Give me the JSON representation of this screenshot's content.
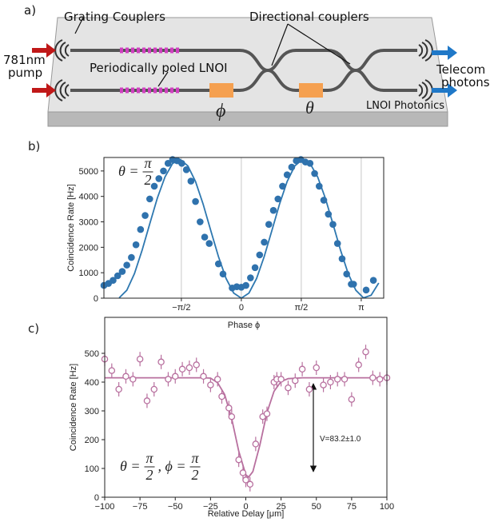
{
  "diagram": {
    "panel_label": "a)",
    "grating": "Grating Couplers",
    "directional": "Directional couplers",
    "pump": [
      "781nm",
      "pump"
    ],
    "ppln": "Periodically poled LNOI",
    "phi": "ϕ",
    "theta": "θ",
    "platform": "LNOI Photonics",
    "output": [
      "Telecom",
      "photons"
    ]
  },
  "chart_data": [
    {
      "type": "scatter",
      "panel_label": "b)",
      "xlabel": "Phase ϕ",
      "ylabel": "Coincidence Rate [Hz]",
      "annotation": [
        {
          "text": "θ ="
        },
        {
          "num": "π",
          "den": "2"
        }
      ],
      "xlim": [
        -3.6,
        3.73
      ],
      "ylim": [
        0,
        5530
      ],
      "xticks": [
        {
          "value": -1.5708,
          "label": "−π/2"
        },
        0,
        {
          "value": 1.5708,
          "label": "π/2"
        },
        {
          "value": 3.1416,
          "label": "π"
        }
      ],
      "yticks": [
        0,
        1000,
        2000,
        3000,
        4000,
        5000
      ],
      "grid": "x",
      "fit": {
        "color": "#2e78b0",
        "x": [
          -3.2,
          -3.0,
          -2.8,
          -2.6,
          -2.4,
          -2.2,
          -2.0,
          -1.8,
          -1.6,
          -1.4,
          -1.2,
          -1.0,
          -0.8,
          -0.6,
          -0.4,
          -0.2,
          0,
          0.2,
          0.4,
          0.6,
          0.8,
          1.0,
          1.2,
          1.4,
          1.6,
          1.8,
          2.0,
          2.2,
          2.4,
          2.6,
          2.8,
          3.0,
          3.2,
          3.4,
          3.6
        ],
        "values": [
          13,
          312,
          966,
          1883,
          2920,
          3936,
          4765,
          5295,
          5450,
          5197,
          4583,
          3693,
          2655,
          1637,
          775,
          201,
          0,
          201,
          775,
          1637,
          2655,
          3693,
          4583,
          5197,
          5450,
          5295,
          4765,
          3936,
          2920,
          1883,
          966,
          312,
          13,
          114,
          598
        ]
      },
      "points": {
        "color": "#2f72ad",
        "x": [
          -3.6,
          -3.48,
          -3.36,
          -3.24,
          -3.12,
          -3.0,
          -2.88,
          -2.76,
          -2.64,
          -2.52,
          -2.4,
          -2.28,
          -2.16,
          -2.04,
          -1.92,
          -1.8,
          -1.68,
          -1.56,
          -1.44,
          -1.32,
          -1.2,
          -1.08,
          -0.96,
          -0.84,
          -0.6,
          -0.48,
          -0.24,
          -0.12,
          0.0,
          0.12,
          0.24,
          0.36,
          0.48,
          0.6,
          0.72,
          0.84,
          0.96,
          1.08,
          1.2,
          1.32,
          1.44,
          1.56,
          1.68,
          1.8,
          1.92,
          2.04,
          2.16,
          2.28,
          2.4,
          2.52,
          2.64,
          2.76,
          2.88,
          2.94,
          3.27,
          3.46
        ],
        "values": [
          500,
          580,
          700,
          880,
          1050,
          1300,
          1600,
          2100,
          2700,
          3250,
          3900,
          4400,
          4700,
          5000,
          5300,
          5450,
          5400,
          5300,
          5050,
          4600,
          3800,
          3000,
          2400,
          2150,
          1350,
          950,
          400,
          450,
          430,
          500,
          800,
          1200,
          1700,
          2200,
          2900,
          3450,
          3900,
          4400,
          4850,
          5150,
          5400,
          5450,
          5350,
          5300,
          4900,
          4400,
          3850,
          3300,
          2900,
          2150,
          1550,
          950,
          550,
          550,
          320,
          700
        ]
      }
    },
    {
      "type": "scatter",
      "panel_label": "c)",
      "xlabel": "Relative Delay [μm]",
      "ylabel": "Coincidence Rate [Hz]",
      "annotation": [
        {
          "text": "θ ="
        },
        {
          "num": "π",
          "den": "2"
        },
        {
          "text": ", ϕ ="
        },
        {
          "num": "π",
          "den": "2"
        }
      ],
      "visibility": "V=83.2±1.0",
      "xlim": [
        -100,
        100
      ],
      "ylim": [
        0,
        625
      ],
      "xticks": [
        {
          "value": -100,
          "label": "−100"
        },
        {
          "value": -75,
          "label": "−75"
        },
        {
          "value": -50,
          "label": "−50"
        },
        {
          "value": -25,
          "label": "−25"
        },
        0,
        25,
        50,
        75,
        100
      ],
      "yticks": [
        0,
        100,
        200,
        300,
        400,
        500
      ],
      "grid": false,
      "fit": {
        "color": "#b8709f",
        "x": [
          -100,
          -50,
          -30,
          -25,
          -20,
          -15,
          -10,
          -5,
          0,
          2,
          5,
          10,
          15,
          20,
          25,
          30,
          40,
          50,
          100
        ],
        "values": [
          415,
          415,
          415,
          414,
          398,
          357,
          273,
          160,
          78,
          70,
          89,
          182,
          294,
          368,
          402,
          412,
          415,
          415,
          415
        ]
      },
      "points": {
        "color": "#b8709f",
        "x": [
          -100,
          -95,
          -90,
          -85,
          -80,
          -75,
          -70,
          -65,
          -60,
          -55,
          -50,
          -45,
          -40,
          -35,
          -30,
          -25,
          -20,
          -17,
          -12,
          -10,
          -5,
          -2,
          0,
          3,
          7,
          12,
          15,
          20,
          22,
          25,
          30,
          35,
          40,
          45,
          50,
          55,
          60,
          65,
          70,
          75,
          80,
          85,
          90,
          95,
          100
        ],
        "values": [
          480,
          440,
          375,
          420,
          410,
          480,
          335,
          375,
          470,
          410,
          420,
          445,
          450,
          460,
          420,
          390,
          410,
          350,
          310,
          280,
          130,
          85,
          60,
          45,
          185,
          280,
          290,
          400,
          410,
          410,
          380,
          405,
          445,
          375,
          450,
          390,
          400,
          410,
          410,
          340,
          460,
          505,
          415,
          410,
          415
        ],
        "errors": [
          25,
          25,
          25,
          25,
          25,
          25,
          25,
          25,
          25,
          25,
          25,
          25,
          25,
          25,
          25,
          25,
          25,
          25,
          25,
          25,
          25,
          25,
          25,
          25,
          25,
          25,
          25,
          25,
          25,
          25,
          25,
          25,
          25,
          25,
          25,
          25,
          25,
          25,
          25,
          25,
          25,
          25,
          25,
          25,
          25
        ]
      }
    }
  ]
}
